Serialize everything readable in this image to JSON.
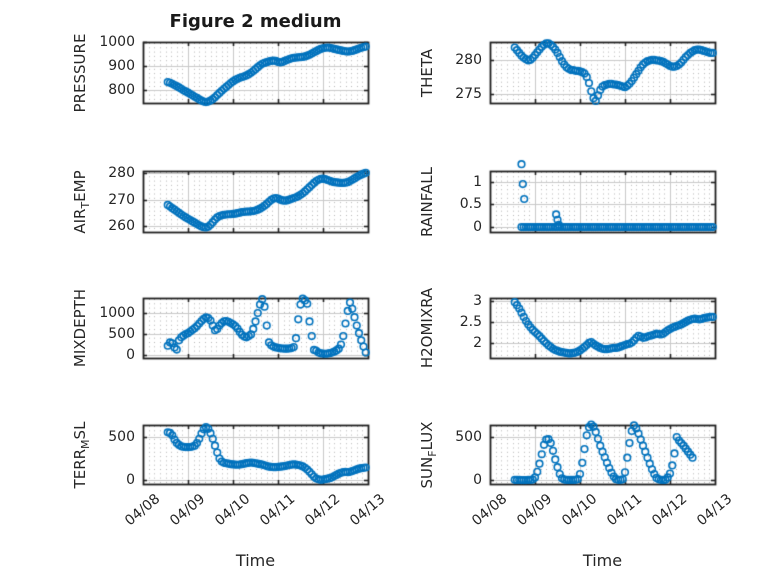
{
  "figure": {
    "title": "Figure 2 medium",
    "marker_color": "#0072BD",
    "axis_color": "#1f1f1f",
    "text_color": "#262626",
    "grid_major_color": "#c9c9c9",
    "grid_minor_color": "#b5b5b5",
    "background": "#ffffff"
  },
  "x_axis": {
    "label": "Time",
    "tick_labels": [
      "04/08",
      "04/09",
      "04/10",
      "04/11",
      "04/12",
      "04/13"
    ],
    "tick_values": [
      0,
      1,
      2,
      3,
      4,
      5
    ],
    "range": [
      0,
      5
    ],
    "minor_step": 0.125
  },
  "chart_data": [
    {
      "type": "scatter",
      "name": "PRESSURE",
      "row": 0,
      "col": 0,
      "ylabel_parts": [
        {
          "text": "PRESSURE"
        }
      ],
      "ytick_values": [
        800,
        900,
        1000
      ],
      "ytick_labels": [
        "800",
        "900",
        "1000"
      ],
      "ylim": [
        746,
        1000
      ],
      "x0": 0.55,
      "dx": 0.05,
      "y": [
        833,
        830,
        826,
        821,
        816,
        811,
        805,
        799,
        794,
        789,
        783,
        778,
        772,
        767,
        761,
        756,
        752,
        750,
        752,
        756,
        762,
        770,
        779,
        788,
        797,
        805,
        813,
        821,
        829,
        836,
        842,
        847,
        851,
        854,
        857,
        861,
        866,
        872,
        879,
        887,
        895,
        903,
        909,
        913,
        916,
        919,
        921,
        923,
        921,
        917,
        915,
        917,
        921,
        925,
        929,
        932,
        934,
        935,
        936,
        937,
        938,
        940,
        943,
        947,
        952,
        957,
        962,
        967,
        971,
        974,
        976,
        977,
        976,
        974,
        971,
        969,
        967,
        965,
        963,
        961,
        960,
        961,
        963,
        966,
        969,
        973,
        976,
        979,
        981
      ]
    },
    {
      "type": "scatter",
      "name": "THETA",
      "row": 0,
      "col": 1,
      "ylabel_parts": [
        {
          "text": "THETA"
        }
      ],
      "ytick_values": [
        275,
        280
      ],
      "ytick_labels": [
        "275",
        "280"
      ],
      "ylim": [
        273.7,
        282.6
      ],
      "x0": 0.55,
      "dx": 0.05,
      "y": [
        281.8,
        281.4,
        281.0,
        280.6,
        280.3,
        280.1,
        279.9,
        280.0,
        280.3,
        280.7,
        281.1,
        281.5,
        281.9,
        282.2,
        282.4,
        282.4,
        282.2,
        281.9,
        281.5,
        281.0,
        280.4,
        279.8,
        279.3,
        278.9,
        278.7,
        278.5,
        278.5,
        278.4,
        278.4,
        278.3,
        278.2,
        278.0,
        277.5,
        276.6,
        275.4,
        274.4,
        274.0,
        274.8,
        275.6,
        276.1,
        276.3,
        276.4,
        276.5,
        276.5,
        276.4,
        276.4,
        276.3,
        276.2,
        276.1,
        276.0,
        276.2,
        276.5,
        276.9,
        277.4,
        277.9,
        278.4,
        278.9,
        279.3,
        279.6,
        279.8,
        279.9,
        280.0,
        280.0,
        279.9,
        279.9,
        279.8,
        279.7,
        279.5,
        279.3,
        279.1,
        279.0,
        279.0,
        279.1,
        279.3,
        279.6,
        280.0,
        280.4,
        280.7,
        281.0,
        281.2,
        281.4,
        281.5,
        281.5,
        281.4,
        281.3,
        281.2,
        281.1,
        281.0,
        281.0
      ]
    },
    {
      "type": "scatter",
      "name": "AIR_TEMP",
      "row": 1,
      "col": 0,
      "ylabel_parts": [
        {
          "text": "AIR"
        },
        {
          "text": "T",
          "sub": true
        },
        {
          "text": "EMP"
        }
      ],
      "ytick_values": [
        260,
        270,
        280
      ],
      "ytick_labels": [
        "260",
        "270",
        "280"
      ],
      "ylim": [
        257.8,
        280.8
      ],
      "x0": 0.55,
      "dx": 0.05,
      "y": [
        268.0,
        267.4,
        266.8,
        266.2,
        265.6,
        265.0,
        264.4,
        263.8,
        263.3,
        262.8,
        262.3,
        261.8,
        261.3,
        260.8,
        260.3,
        259.9,
        259.6,
        259.5,
        259.8,
        260.5,
        261.5,
        262.5,
        263.3,
        263.8,
        264.1,
        264.3,
        264.4,
        264.5,
        264.5,
        264.6,
        264.7,
        264.9,
        265.1,
        265.3,
        265.4,
        265.5,
        265.5,
        265.6,
        265.7,
        265.9,
        266.2,
        266.6,
        267.1,
        267.7,
        268.4,
        269.2,
        269.9,
        270.4,
        270.6,
        270.4,
        270.0,
        269.7,
        269.6,
        269.7,
        270.0,
        270.3,
        270.6,
        270.9,
        271.3,
        271.8,
        272.4,
        273.1,
        273.9,
        274.7,
        275.5,
        276.3,
        277.0,
        277.5,
        277.8,
        277.9,
        277.7,
        277.4,
        277.1,
        276.8,
        276.6,
        276.5,
        276.4,
        276.3,
        276.3,
        276.4,
        276.6,
        277.0,
        277.5,
        278.0,
        278.5,
        279.0,
        279.4,
        279.8,
        280.1
      ]
    },
    {
      "type": "scatter",
      "name": "RAINFALL",
      "row": 1,
      "col": 1,
      "ylabel_parts": [
        {
          "text": "RAINFALL"
        }
      ],
      "ytick_values": [
        0,
        0.5,
        1
      ],
      "ytick_labels": [
        "0",
        "0.5",
        "1"
      ],
      "ylim": [
        -0.11,
        1.24
      ],
      "x0": 0.7,
      "dx": 0.05,
      "y": [
        0,
        0,
        0,
        0,
        0,
        0,
        0,
        0,
        0,
        0,
        0,
        0,
        0,
        0,
        0,
        0,
        0,
        0,
        0,
        0,
        0,
        0,
        0,
        0,
        0,
        0,
        0,
        0,
        0,
        0,
        0,
        0,
        0,
        0,
        0,
        0,
        0,
        0,
        0,
        0,
        0,
        0,
        0,
        0,
        0,
        0,
        0,
        0,
        0,
        0,
        0,
        0,
        0,
        0,
        0,
        0,
        0,
        0,
        0,
        0,
        0,
        0,
        0,
        0,
        0,
        0,
        0,
        0,
        0,
        0,
        0,
        0,
        0,
        0,
        0,
        0,
        0,
        0,
        0,
        0,
        0,
        0,
        0,
        0,
        0,
        0
      ],
      "extra_points": [
        [
          0.7,
          1.39
        ],
        [
          0.73,
          0.95
        ],
        [
          0.76,
          0.62
        ],
        [
          1.47,
          0.28
        ],
        [
          1.5,
          0.16
        ],
        [
          1.53,
          0.05
        ]
      ]
    },
    {
      "type": "scatter",
      "name": "MIXDEPTH",
      "row": 2,
      "col": 0,
      "ylabel_parts": [
        {
          "text": "MIXDEPTH"
        }
      ],
      "ytick_values": [
        0,
        500,
        1000
      ],
      "ytick_labels": [
        "0",
        "500",
        "1000"
      ],
      "ylim": [
        -71,
        1357
      ],
      "x0": 0.55,
      "dx": 0.05,
      "y": [
        220,
        300,
        280,
        180,
        130,
        350,
        420,
        460,
        500,
        520,
        560,
        600,
        640,
        690,
        750,
        810,
        860,
        895,
        880,
        820,
        700,
        590,
        620,
        700,
        760,
        800,
        810,
        790,
        760,
        730,
        690,
        630,
        550,
        480,
        440,
        420,
        450,
        490,
        620,
        800,
        1000,
        1200,
        1330,
        1150,
        700,
        300,
        230,
        200,
        180,
        170,
        160,
        155,
        150,
        150,
        155,
        165,
        190,
        400,
        850,
        1200,
        1340,
        1300,
        1220,
        800,
        450,
        120,
        100,
        60,
        40,
        35,
        30,
        35,
        45,
        60,
        80,
        110,
        150,
        250,
        450,
        750,
        1050,
        1250,
        1100,
        900,
        700,
        520,
        350,
        200,
        60
      ]
    },
    {
      "type": "scatter",
      "name": "H2OMIXRA",
      "row": 2,
      "col": 1,
      "ylabel_parts": [
        {
          "text": "H2OMIXRA"
        }
      ],
      "ytick_values": [
        2,
        2.5,
        3
      ],
      "ytick_labels": [
        "2",
        "2.5",
        "3"
      ],
      "ylim": [
        1.64,
        3.07
      ],
      "x0": 0.55,
      "dx": 0.05,
      "y": [
        2.97,
        2.9,
        2.82,
        2.72,
        2.62,
        2.52,
        2.44,
        2.37,
        2.31,
        2.26,
        2.21,
        2.16,
        2.1,
        2.04,
        1.99,
        1.94,
        1.9,
        1.86,
        1.83,
        1.81,
        1.79,
        1.78,
        1.77,
        1.76,
        1.75,
        1.75,
        1.76,
        1.77,
        1.79,
        1.82,
        1.86,
        1.9,
        1.95,
        2.0,
        2.02,
        1.98,
        1.94,
        1.91,
        1.88,
        1.86,
        1.85,
        1.85,
        1.86,
        1.87,
        1.88,
        1.88,
        1.89,
        1.91,
        1.93,
        1.95,
        1.97,
        1.98,
        2.01,
        2.06,
        2.12,
        2.17,
        2.15,
        2.12,
        2.13,
        2.15,
        2.17,
        2.18,
        2.2,
        2.22,
        2.21,
        2.2,
        2.22,
        2.26,
        2.3,
        2.33,
        2.36,
        2.38,
        2.4,
        2.42,
        2.44,
        2.47,
        2.5,
        2.53,
        2.55,
        2.57,
        2.58,
        2.57,
        2.56,
        2.57,
        2.59,
        2.6,
        2.61,
        2.62,
        2.62
      ]
    },
    {
      "type": "scatter",
      "name": "TERR_MSL",
      "row": 3,
      "col": 0,
      "ylabel_parts": [
        {
          "text": "TERR"
        },
        {
          "text": "M",
          "sub": true
        },
        {
          "text": "SL"
        }
      ],
      "ytick_values": [
        0,
        500
      ],
      "ytick_labels": [
        "0",
        "500"
      ],
      "ylim": [
        -46,
        640
      ],
      "x0": 0.55,
      "dx": 0.05,
      "y": [
        555,
        548,
        520,
        470,
        432,
        408,
        392,
        386,
        383,
        382,
        384,
        390,
        400,
        430,
        480,
        540,
        590,
        615,
        595,
        545,
        480,
        400,
        320,
        250,
        215,
        200,
        195,
        190,
        185,
        182,
        180,
        178,
        180,
        185,
        190,
        196,
        200,
        204,
        200,
        195,
        190,
        185,
        180,
        172,
        162,
        155,
        152,
        150,
        150,
        152,
        155,
        158,
        162,
        168,
        175,
        180,
        182,
        180,
        175,
        168,
        158,
        143,
        122,
        96,
        66,
        38,
        18,
        8,
        3,
        6,
        10,
        16,
        22,
        32,
        46,
        60,
        74,
        85,
        92,
        96,
        92,
        96,
        104,
        114,
        124,
        132,
        138,
        142,
        146
      ]
    },
    {
      "type": "scatter",
      "name": "SUN_FLUX",
      "row": 3,
      "col": 1,
      "ylabel_parts": [
        {
          "text": "SUN"
        },
        {
          "text": "F",
          "sub": true
        },
        {
          "text": "LUX"
        }
      ],
      "ytick_values": [
        0,
        500
      ],
      "ytick_labels": [
        "0",
        "500"
      ],
      "ylim": [
        -46,
        640
      ],
      "x0": 0.55,
      "dx": 0.05,
      "y": [
        2,
        1,
        1,
        0,
        0,
        0,
        1,
        2,
        5,
        30,
        95,
        190,
        300,
        410,
        470,
        475,
        430,
        340,
        240,
        150,
        70,
        20,
        5,
        2,
        1,
        1,
        2,
        3,
        10,
        70,
        200,
        360,
        520,
        615,
        645,
        620,
        560,
        480,
        400,
        330,
        265,
        200,
        140,
        85,
        40,
        10,
        3,
        2,
        8,
        90,
        260,
        430,
        570,
        635,
        600,
        540,
        470,
        400,
        330,
        260,
        190,
        125,
        70,
        25,
        8,
        2,
        1,
        2,
        30,
        75,
        170,
        310,
        500,
        460,
        430,
        400,
        365,
        330,
        295,
        260,
        null,
        null,
        null,
        null,
        null,
        null,
        null,
        null,
        null
      ]
    }
  ]
}
